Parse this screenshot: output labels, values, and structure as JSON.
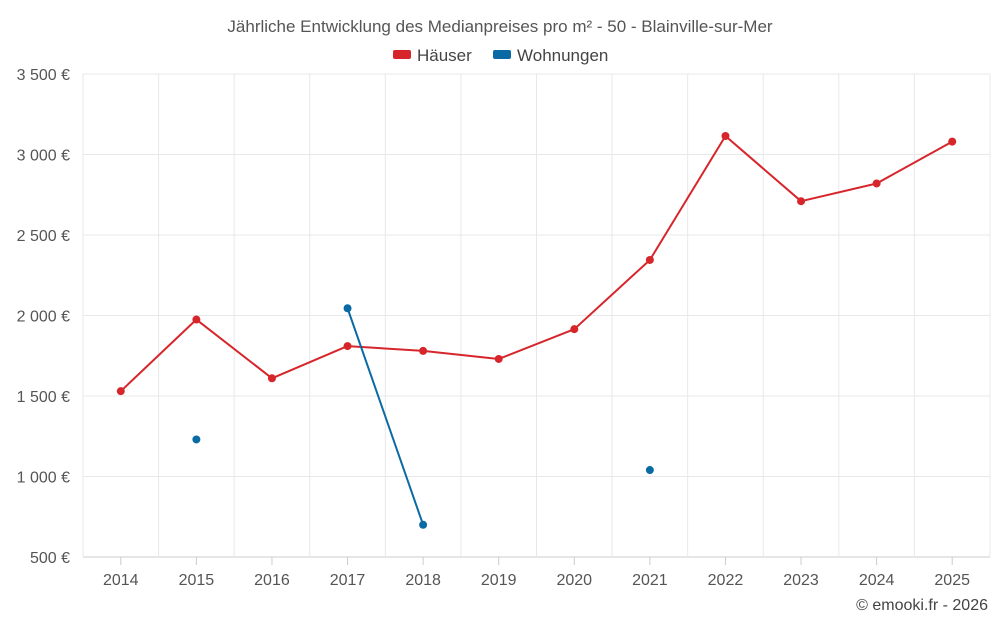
{
  "chart_data": {
    "type": "line",
    "title": "Jährliche Entwicklung des Medianpreises pro m² - 50 - Blainville-sur-Mer",
    "xlabel": "",
    "ylabel": "",
    "categories": [
      "2014",
      "2015",
      "2016",
      "2017",
      "2018",
      "2019",
      "2020",
      "2021",
      "2022",
      "2023",
      "2024",
      "2025"
    ],
    "ylim": [
      500,
      3500
    ],
    "yticks": [
      500,
      1000,
      1500,
      2000,
      2500,
      3000,
      3500
    ],
    "ytick_labels": [
      "500 €",
      "1 000 €",
      "1 500 €",
      "2 000 €",
      "2 500 €",
      "3 000 €",
      "3 500 €"
    ],
    "grid": true,
    "legend_position": "top-center",
    "series": [
      {
        "name": "Häuser",
        "color": "#d7262b",
        "values": [
          1530,
          1975,
          1610,
          1810,
          1780,
          1730,
          1915,
          2345,
          3115,
          2710,
          2820,
          3080
        ]
      },
      {
        "name": "Wohnungen",
        "color": "#0a6aa3",
        "values": [
          null,
          1230,
          null,
          2045,
          700,
          null,
          null,
          1040,
          null,
          null,
          null,
          null
        ]
      }
    ]
  },
  "credit": "© emooki.fr - 2026"
}
